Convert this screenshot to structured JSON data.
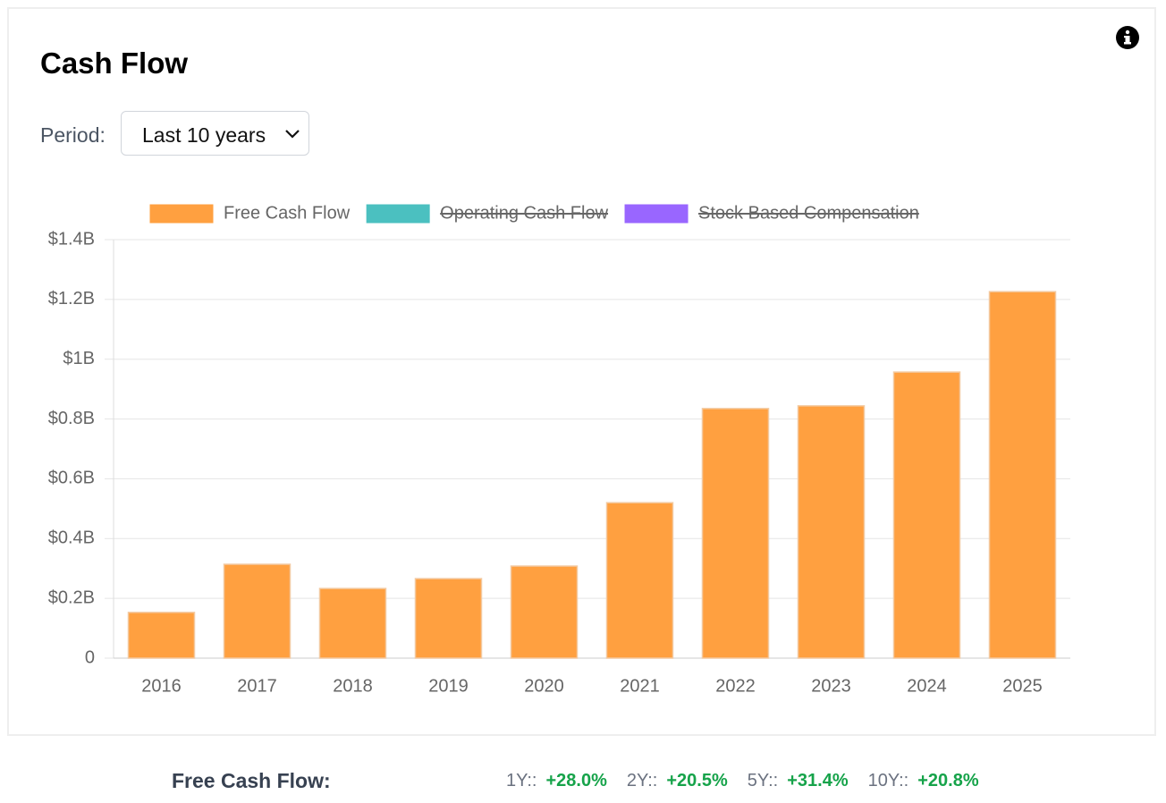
{
  "header": {
    "title": "Cash Flow",
    "period_label": "Period:",
    "period_value": "Last 10 years"
  },
  "chart_data": {
    "type": "bar",
    "categories": [
      "2016",
      "2017",
      "2018",
      "2019",
      "2020",
      "2021",
      "2022",
      "2023",
      "2024",
      "2025"
    ],
    "series": [
      {
        "name": "Free Cash Flow",
        "color": "#ffa040",
        "values": [
          153000000,
          314000000,
          233000000,
          266000000,
          308000000,
          520000000,
          835000000,
          844000000,
          957000000,
          1226000000
        ]
      },
      {
        "name": "Operating Cash Flow",
        "color": "#4bc0c0",
        "hidden": true
      },
      {
        "name": "Stock Based Compensation",
        "color": "#9966ff",
        "hidden": true
      }
    ],
    "ylim": [
      0,
      1400000000
    ],
    "yticks": [
      0,
      {
        "value": 200000000,
        "label": "$0.2B"
      },
      {
        "value": 400000000,
        "label": "$0.4B"
      },
      {
        "value": 600000000,
        "label": "$0.6B"
      },
      {
        "value": 800000000,
        "label": "$0.8B"
      },
      {
        "value": 1000000000,
        "label": "$1B"
      },
      {
        "value": 1200000000,
        "label": "$1.2B"
      },
      {
        "value": 1400000000,
        "label": "$1.4B"
      }
    ],
    "grid": true,
    "legend": "top"
  },
  "footer": {
    "label": "Free Cash Flow:",
    "stats": [
      {
        "label": "1Y::",
        "value": "+28.0%"
      },
      {
        "label": "2Y::",
        "value": "+20.5%"
      },
      {
        "label": "5Y::",
        "value": "+31.4%"
      },
      {
        "label": "10Y::",
        "value": "+20.8%"
      }
    ]
  }
}
